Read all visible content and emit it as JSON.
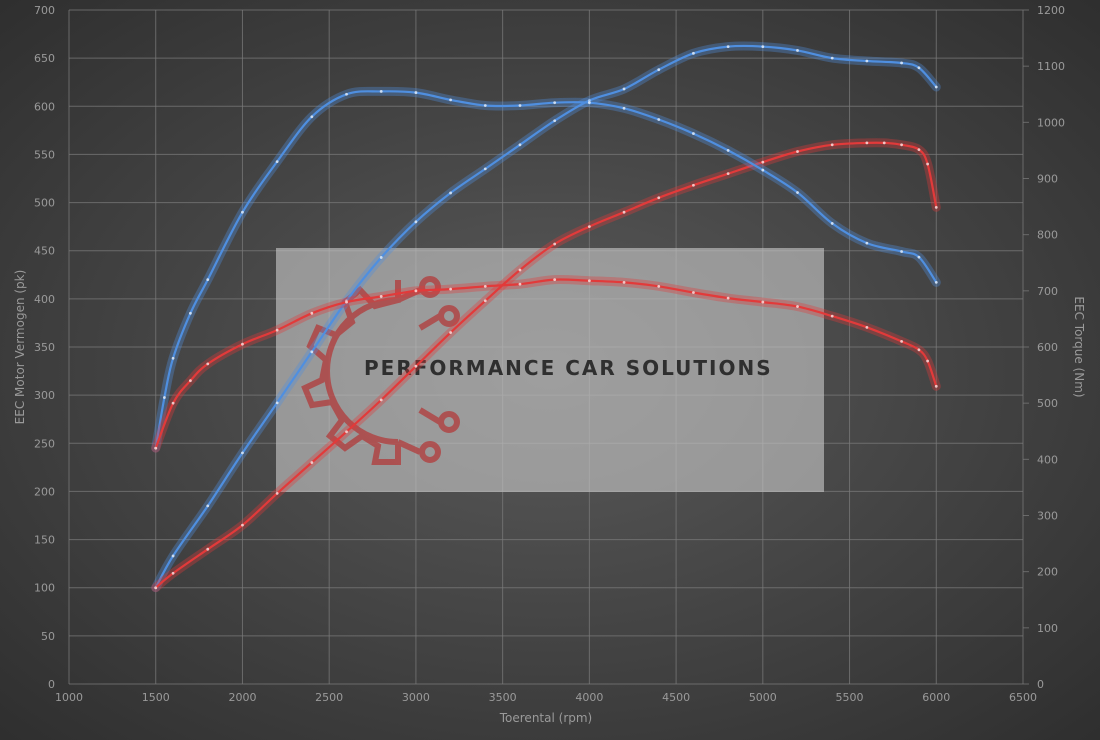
{
  "chart_data": {
    "type": "line",
    "title": "",
    "xlabel": "Toerental (rpm)",
    "ylabel": "EEC Motor Vermogen (pk)",
    "y2label": "EEC Torque (Nm)",
    "xlim": [
      1000,
      6500
    ],
    "ylim": [
      0,
      700
    ],
    "y2lim": [
      0,
      1200
    ],
    "x_ticks": [
      1000,
      1500,
      2000,
      2500,
      3000,
      3500,
      4000,
      4500,
      5000,
      5500,
      6000,
      6500
    ],
    "y_ticks": [
      0,
      50,
      100,
      150,
      200,
      250,
      300,
      350,
      400,
      450,
      500,
      550,
      600,
      650,
      700
    ],
    "y2_ticks": [
      0,
      100,
      200,
      300,
      400,
      500,
      600,
      700,
      800,
      900,
      1000,
      1100,
      1200
    ],
    "grid": true,
    "legend": "none",
    "series": [
      {
        "color": "#4f8fe0",
        "axis": "left",
        "x": [
          1500,
          1600,
          1800,
          2000,
          2200,
          2400,
          2600,
          2800,
          3000,
          3200,
          3400,
          3600,
          3800,
          4000,
          4200,
          4400,
          4600,
          4800,
          5000,
          5200,
          5400,
          5600,
          5800,
          5900,
          6000
        ],
        "y": [
          100,
          133,
          185,
          240,
          292,
          345,
          398,
          443,
          480,
          510,
          535,
          560,
          585,
          606,
          618,
          638,
          655,
          662,
          662,
          658,
          650,
          647,
          645,
          640,
          620
        ]
      },
      {
        "color": "#e23a3a",
        "axis": "left",
        "x": [
          1500,
          1600,
          1800,
          2000,
          2200,
          2400,
          2600,
          2800,
          3000,
          3200,
          3400,
          3600,
          3800,
          4000,
          4200,
          4400,
          4600,
          4800,
          5000,
          5200,
          5400,
          5600,
          5700,
          5800,
          5900,
          5950,
          6000
        ],
        "y": [
          100,
          115,
          140,
          165,
          198,
          230,
          262,
          295,
          330,
          365,
          398,
          430,
          457,
          475,
          490,
          505,
          518,
          530,
          542,
          553,
          560,
          562,
          562,
          560,
          555,
          540,
          495
        ]
      },
      {
        "color": "#4f8fe0",
        "axis": "right",
        "x": [
          1500,
          1550,
          1600,
          1700,
          1800,
          2000,
          2200,
          2400,
          2600,
          2800,
          3000,
          3200,
          3400,
          3600,
          3800,
          4000,
          4200,
          4400,
          4600,
          4800,
          5000,
          5200,
          5400,
          5600,
          5800,
          5900,
          6000
        ],
        "y": [
          420,
          510,
          580,
          660,
          720,
          840,
          930,
          1010,
          1050,
          1055,
          1053,
          1040,
          1030,
          1030,
          1035,
          1035,
          1025,
          1005,
          980,
          950,
          915,
          875,
          820,
          785,
          770,
          760,
          715
        ]
      },
      {
        "color": "#e23a3a",
        "axis": "right",
        "x": [
          1500,
          1600,
          1700,
          1800,
          2000,
          2200,
          2400,
          2600,
          2800,
          3000,
          3200,
          3400,
          3600,
          3800,
          4000,
          4200,
          4400,
          4600,
          4800,
          5000,
          5200,
          5400,
          5600,
          5800,
          5900,
          5950,
          6000
        ],
        "y": [
          420,
          500,
          540,
          570,
          605,
          630,
          660,
          680,
          690,
          700,
          703,
          708,
          712,
          720,
          718,
          715,
          708,
          697,
          687,
          680,
          672,
          655,
          635,
          610,
          595,
          575,
          530
        ]
      }
    ]
  },
  "watermark": {
    "text": "PERFORMANCE CAR SOLUTIONS"
  }
}
